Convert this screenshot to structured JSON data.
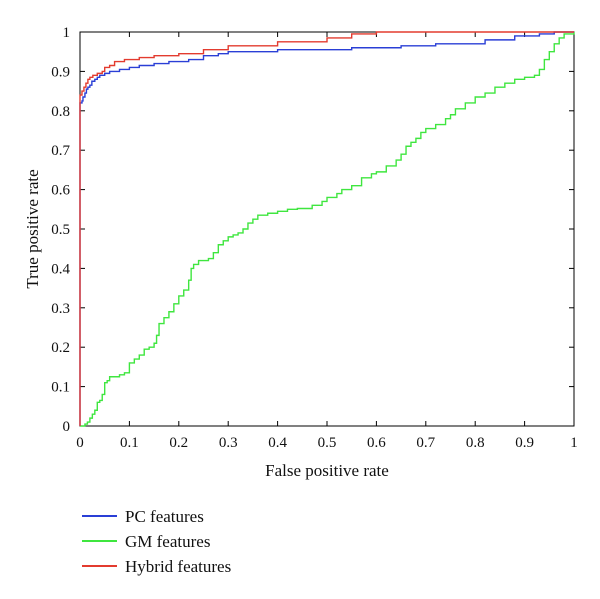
{
  "chart_data": {
    "type": "line",
    "title": "",
    "xlabel": "False positive rate",
    "ylabel": "True positive rate",
    "xlim": [
      0,
      1
    ],
    "ylim": [
      0,
      1
    ],
    "grid": false,
    "legend_placement": "bottom-left-outside",
    "x_ticks": [
      "0",
      "0.1",
      "0.2",
      "0.3",
      "0.4",
      "0.5",
      "0.6",
      "0.7",
      "0.8",
      "0.9",
      "1"
    ],
    "y_ticks": [
      "0",
      "0.1",
      "0.2",
      "0.3",
      "0.4",
      "0.5",
      "0.6",
      "0.7",
      "0.8",
      "0.9",
      "1"
    ],
    "series": [
      {
        "name": "PC features",
        "color": "#2a3fd6",
        "points": [
          [
            0,
            0
          ],
          [
            0,
            0.82
          ],
          [
            0.004,
            0.825
          ],
          [
            0.006,
            0.835
          ],
          [
            0.01,
            0.845
          ],
          [
            0.013,
            0.855
          ],
          [
            0.016,
            0.86
          ],
          [
            0.02,
            0.865
          ],
          [
            0.024,
            0.875
          ],
          [
            0.03,
            0.88
          ],
          [
            0.035,
            0.885
          ],
          [
            0.04,
            0.89
          ],
          [
            0.05,
            0.895
          ],
          [
            0.06,
            0.9
          ],
          [
            0.08,
            0.905
          ],
          [
            0.1,
            0.91
          ],
          [
            0.12,
            0.915
          ],
          [
            0.15,
            0.92
          ],
          [
            0.18,
            0.925
          ],
          [
            0.22,
            0.93
          ],
          [
            0.25,
            0.94
          ],
          [
            0.28,
            0.945
          ],
          [
            0.3,
            0.95
          ],
          [
            0.4,
            0.955
          ],
          [
            0.55,
            0.96
          ],
          [
            0.65,
            0.965
          ],
          [
            0.72,
            0.97
          ],
          [
            0.82,
            0.98
          ],
          [
            0.88,
            0.99
          ],
          [
            0.93,
            0.995
          ],
          [
            0.96,
            1.0
          ],
          [
            1,
            1.0
          ]
        ]
      },
      {
        "name": "GM features",
        "color": "#3fe63f",
        "points": [
          [
            0,
            0
          ],
          [
            0.01,
            0.005
          ],
          [
            0.015,
            0.01
          ],
          [
            0.02,
            0.02
          ],
          [
            0.025,
            0.03
          ],
          [
            0.03,
            0.04
          ],
          [
            0.035,
            0.06
          ],
          [
            0.04,
            0.065
          ],
          [
            0.045,
            0.08
          ],
          [
            0.05,
            0.11
          ],
          [
            0.055,
            0.115
          ],
          [
            0.06,
            0.125
          ],
          [
            0.08,
            0.13
          ],
          [
            0.09,
            0.135
          ],
          [
            0.1,
            0.16
          ],
          [
            0.11,
            0.17
          ],
          [
            0.12,
            0.18
          ],
          [
            0.13,
            0.195
          ],
          [
            0.14,
            0.2
          ],
          [
            0.15,
            0.21
          ],
          [
            0.155,
            0.23
          ],
          [
            0.16,
            0.26
          ],
          [
            0.17,
            0.275
          ],
          [
            0.18,
            0.29
          ],
          [
            0.19,
            0.31
          ],
          [
            0.2,
            0.33
          ],
          [
            0.21,
            0.345
          ],
          [
            0.22,
            0.37
          ],
          [
            0.225,
            0.4
          ],
          [
            0.23,
            0.41
          ],
          [
            0.24,
            0.42
          ],
          [
            0.26,
            0.425
          ],
          [
            0.27,
            0.44
          ],
          [
            0.28,
            0.46
          ],
          [
            0.29,
            0.47
          ],
          [
            0.3,
            0.48
          ],
          [
            0.31,
            0.485
          ],
          [
            0.32,
            0.49
          ],
          [
            0.33,
            0.5
          ],
          [
            0.34,
            0.515
          ],
          [
            0.35,
            0.525
          ],
          [
            0.36,
            0.535
          ],
          [
            0.38,
            0.54
          ],
          [
            0.4,
            0.545
          ],
          [
            0.42,
            0.55
          ],
          [
            0.44,
            0.552
          ],
          [
            0.47,
            0.56
          ],
          [
            0.49,
            0.57
          ],
          [
            0.5,
            0.58
          ],
          [
            0.52,
            0.59
          ],
          [
            0.53,
            0.6
          ],
          [
            0.55,
            0.61
          ],
          [
            0.57,
            0.63
          ],
          [
            0.59,
            0.64
          ],
          [
            0.6,
            0.645
          ],
          [
            0.62,
            0.66
          ],
          [
            0.64,
            0.675
          ],
          [
            0.65,
            0.69
          ],
          [
            0.66,
            0.71
          ],
          [
            0.67,
            0.72
          ],
          [
            0.68,
            0.73
          ],
          [
            0.69,
            0.745
          ],
          [
            0.7,
            0.755
          ],
          [
            0.72,
            0.765
          ],
          [
            0.74,
            0.78
          ],
          [
            0.75,
            0.79
          ],
          [
            0.76,
            0.805
          ],
          [
            0.78,
            0.82
          ],
          [
            0.8,
            0.835
          ],
          [
            0.82,
            0.845
          ],
          [
            0.84,
            0.86
          ],
          [
            0.86,
            0.87
          ],
          [
            0.88,
            0.88
          ],
          [
            0.9,
            0.885
          ],
          [
            0.92,
            0.89
          ],
          [
            0.93,
            0.905
          ],
          [
            0.94,
            0.93
          ],
          [
            0.95,
            0.95
          ],
          [
            0.96,
            0.97
          ],
          [
            0.97,
            0.985
          ],
          [
            0.98,
            0.995
          ],
          [
            1,
            1.0
          ]
        ]
      },
      {
        "name": "Hybrid features",
        "color": "#e33b2f",
        "points": [
          [
            0,
            0
          ],
          [
            0,
            0.84
          ],
          [
            0.004,
            0.85
          ],
          [
            0.008,
            0.86
          ],
          [
            0.012,
            0.87
          ],
          [
            0.016,
            0.88
          ],
          [
            0.02,
            0.885
          ],
          [
            0.026,
            0.89
          ],
          [
            0.035,
            0.895
          ],
          [
            0.045,
            0.9
          ],
          [
            0.05,
            0.91
          ],
          [
            0.06,
            0.915
          ],
          [
            0.07,
            0.925
          ],
          [
            0.09,
            0.93
          ],
          [
            0.12,
            0.935
          ],
          [
            0.15,
            0.94
          ],
          [
            0.2,
            0.945
          ],
          [
            0.25,
            0.955
          ],
          [
            0.3,
            0.965
          ],
          [
            0.4,
            0.975
          ],
          [
            0.5,
            0.985
          ],
          [
            0.55,
            0.995
          ],
          [
            0.6,
            1.0
          ],
          [
            1,
            1.0
          ]
        ]
      }
    ]
  }
}
